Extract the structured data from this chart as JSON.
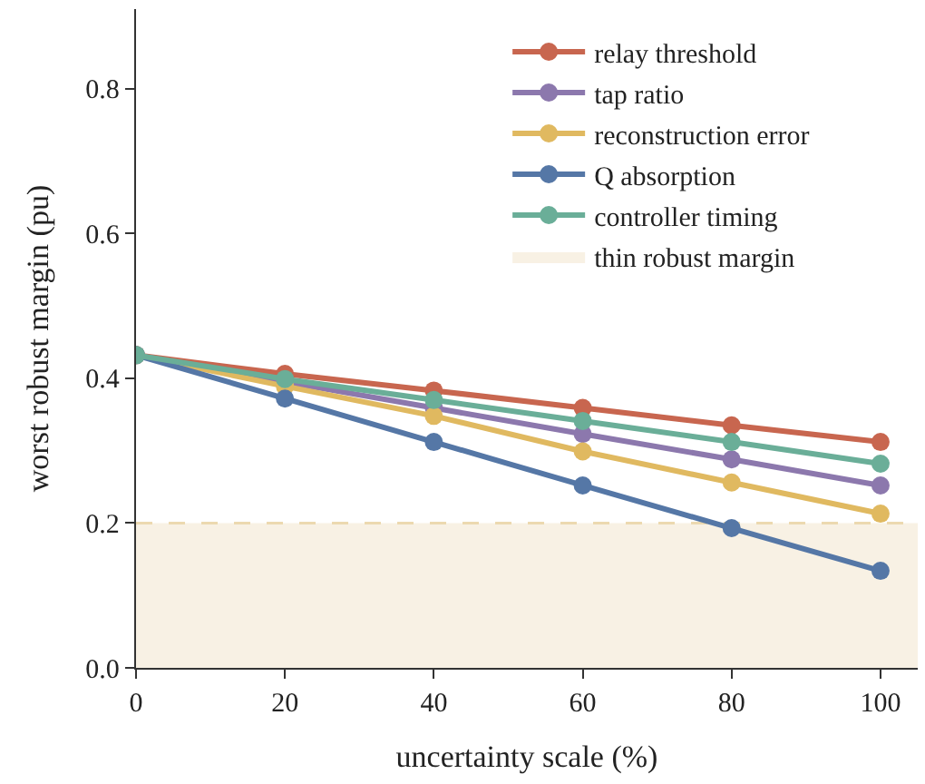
{
  "chart_data": {
    "type": "line",
    "xlabel": "uncertainty scale (%)",
    "ylabel": "worst robust margin (pu)",
    "x": [
      0,
      20,
      40,
      60,
      80,
      100
    ],
    "series": [
      {
        "name": "relay threshold",
        "color": "#c8664f",
        "values": [
          0.432,
          0.406,
          0.383,
          0.359,
          0.335,
          0.312
        ]
      },
      {
        "name": "tap ratio",
        "color": "#8c78ad",
        "values": [
          0.432,
          0.395,
          0.359,
          0.323,
          0.288,
          0.252
        ]
      },
      {
        "name": "reconstruction error",
        "color": "#e0b960",
        "values": [
          0.432,
          0.389,
          0.348,
          0.299,
          0.256,
          0.213
        ]
      },
      {
        "name": "Q absorption",
        "color": "#5577a6",
        "values": [
          0.432,
          0.372,
          0.312,
          0.252,
          0.193,
          0.134
        ]
      },
      {
        "name": "controller timing",
        "color": "#6aae98",
        "values": [
          0.432,
          0.399,
          0.37,
          0.341,
          0.312,
          0.282
        ]
      }
    ],
    "bands": [
      {
        "axis": "y",
        "from": 0,
        "to": 0.2,
        "label": "thin robust margin",
        "color": "#f8f1e4"
      }
    ],
    "ref_lines": [
      {
        "axis": "y",
        "value": 0.2,
        "color": "#ecd9b0",
        "line_style": "dashed"
      }
    ],
    "xlim": [
      0,
      105
    ],
    "xticks": [
      0,
      20,
      40,
      60,
      80,
      100
    ],
    "ylim": [
      0,
      0.91
    ],
    "yticks": [
      {
        "value": 0,
        "label": "0.0"
      },
      {
        "value": 0.2,
        "label": "0.2"
      },
      {
        "value": 0.4,
        "label": "0.4"
      },
      {
        "value": 0.6,
        "label": "0.6"
      },
      {
        "value": 0.8,
        "label": "0.8"
      }
    ],
    "legend": "top right",
    "marker": "circle",
    "line_style": "solid"
  }
}
